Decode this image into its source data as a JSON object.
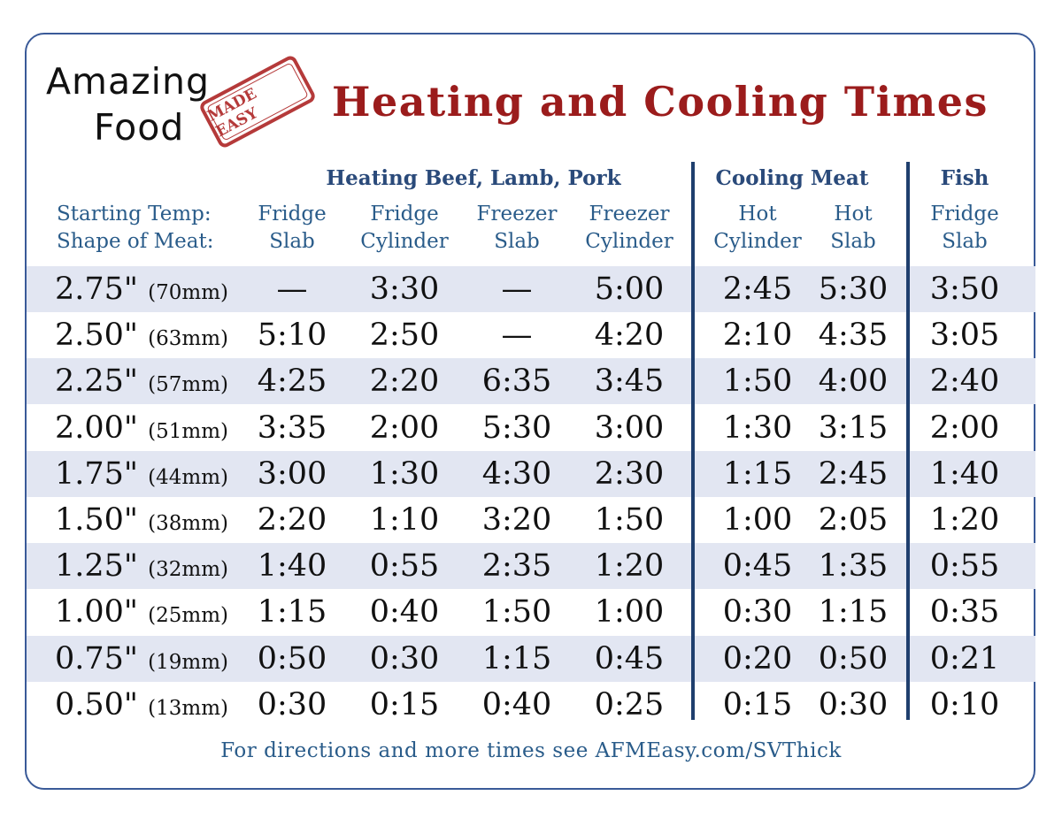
{
  "logo": {
    "line1": "Amazing",
    "line2": "Food",
    "stamp": "MADE EASY"
  },
  "title": "Heating and Cooling Times",
  "groups": {
    "heating": "Heating Beef, Lamb, Pork",
    "cooling": "Cooling Meat",
    "fish": "Fish"
  },
  "row_labels": {
    "line1": "Starting Temp:",
    "line2": "Shape of Meat:"
  },
  "columns": [
    {
      "line1": "Fridge",
      "line2": "Slab"
    },
    {
      "line1": "Fridge",
      "line2": "Cylinder"
    },
    {
      "line1": "Freezer",
      "line2": "Slab"
    },
    {
      "line1": "Freezer",
      "line2": "Cylinder"
    },
    {
      "line1": "Hot",
      "line2": "Cylinder"
    },
    {
      "line1": "Hot",
      "line2": "Slab"
    },
    {
      "line1": "Fridge",
      "line2": "Slab"
    }
  ],
  "rows": [
    {
      "inches": "2.75\"",
      "mm": "(70mm)",
      "values": [
        "—",
        "3:30",
        "—",
        "5:00",
        "2:45",
        "5:30",
        "3:50"
      ]
    },
    {
      "inches": "2.50\"",
      "mm": "(63mm)",
      "values": [
        "5:10",
        "2:50",
        "—",
        "4:20",
        "2:10",
        "4:35",
        "3:05"
      ]
    },
    {
      "inches": "2.25\"",
      "mm": "(57mm)",
      "values": [
        "4:25",
        "2:20",
        "6:35",
        "3:45",
        "1:50",
        "4:00",
        "2:40"
      ]
    },
    {
      "inches": "2.00\"",
      "mm": "(51mm)",
      "values": [
        "3:35",
        "2:00",
        "5:30",
        "3:00",
        "1:30",
        "3:15",
        "2:00"
      ]
    },
    {
      "inches": "1.75\"",
      "mm": "(44mm)",
      "values": [
        "3:00",
        "1:30",
        "4:30",
        "2:30",
        "1:15",
        "2:45",
        "1:40"
      ]
    },
    {
      "inches": "1.50\"",
      "mm": "(38mm)",
      "values": [
        "2:20",
        "1:10",
        "3:20",
        "1:50",
        "1:00",
        "2:05",
        "1:20"
      ]
    },
    {
      "inches": "1.25\"",
      "mm": "(32mm)",
      "values": [
        "1:40",
        "0:55",
        "2:35",
        "1:20",
        "0:45",
        "1:35",
        "0:55"
      ]
    },
    {
      "inches": "1.00\"",
      "mm": "(25mm)",
      "values": [
        "1:15",
        "0:40",
        "1:50",
        "1:00",
        "0:30",
        "1:15",
        "0:35"
      ]
    },
    {
      "inches": "0.75\"",
      "mm": "(19mm)",
      "values": [
        "0:50",
        "0:30",
        "1:15",
        "0:45",
        "0:20",
        "0:50",
        "0:21"
      ]
    },
    {
      "inches": "0.50\"",
      "mm": "(13mm)",
      "values": [
        "0:30",
        "0:15",
        "0:40",
        "0:25",
        "0:15",
        "0:30",
        "0:10"
      ]
    }
  ],
  "footer": "For directions and more times see AFMEasy.com/SVThick",
  "colors": {
    "title": "#9b1c1c",
    "header": "#2a4a7a",
    "band": "#e2e6f2",
    "divider": "#1f3f6e",
    "border": "#3a5a98"
  }
}
